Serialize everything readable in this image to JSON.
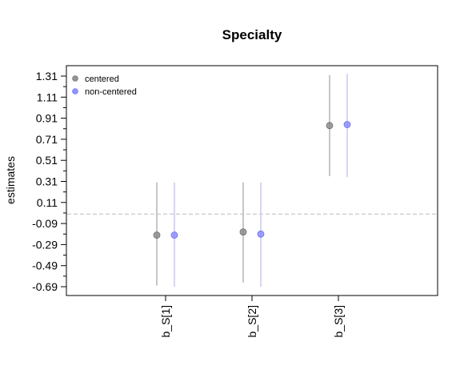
{
  "chart_data": {
    "type": "scatter",
    "title": "Specialty",
    "xlabel": "",
    "ylabel": "estimates",
    "categories": [
      "b_S[1]",
      "b_S[2]",
      "b_S[3]"
    ],
    "y_ticks": [
      "1.31",
      "1.11",
      "0.91",
      "0.71",
      "0.51",
      "0.31",
      "0.11",
      "-0.09",
      "-0.29",
      "-0.49",
      "-0.69"
    ],
    "ylim": [
      -0.71,
      1.38
    ],
    "reference_line": {
      "y": 0.0,
      "style": "dashed",
      "color": "#bbbbbb"
    },
    "legend_position": "top-left",
    "grid": false,
    "series": [
      {
        "name": "centered",
        "color": "#808080",
        "estimates": [
          -0.2,
          -0.17,
          0.84
        ],
        "lower": [
          -0.68,
          -0.65,
          0.36
        ],
        "upper": [
          0.3,
          0.3,
          1.32
        ]
      },
      {
        "name": "non-centered",
        "color": "#8080ff",
        "estimates": [
          -0.2,
          -0.19,
          0.85
        ],
        "lower": [
          -0.69,
          -0.69,
          0.35
        ],
        "upper": [
          0.3,
          0.3,
          1.33
        ]
      }
    ]
  }
}
